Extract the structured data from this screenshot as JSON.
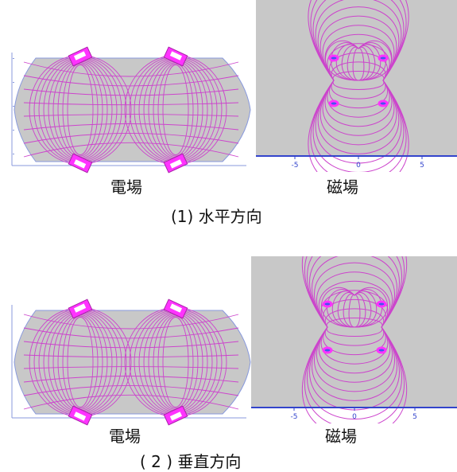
{
  "figures": [
    {
      "electric_label": "電場",
      "magnetic_label": "磁場",
      "caption": "(1) 水平方向",
      "ticks": [
        "-5",
        "0",
        "5"
      ]
    },
    {
      "electric_label": "電場",
      "magnetic_label": "磁場",
      "caption": "( 2 ) 垂直方向",
      "ticks": [
        "-5",
        "0",
        "5"
      ]
    }
  ],
  "colors": {
    "field_line": "#cc33cc",
    "electrode": "#ff33ff",
    "background_gray": "#c8c8c8",
    "axis_blue": "#3344cc"
  }
}
